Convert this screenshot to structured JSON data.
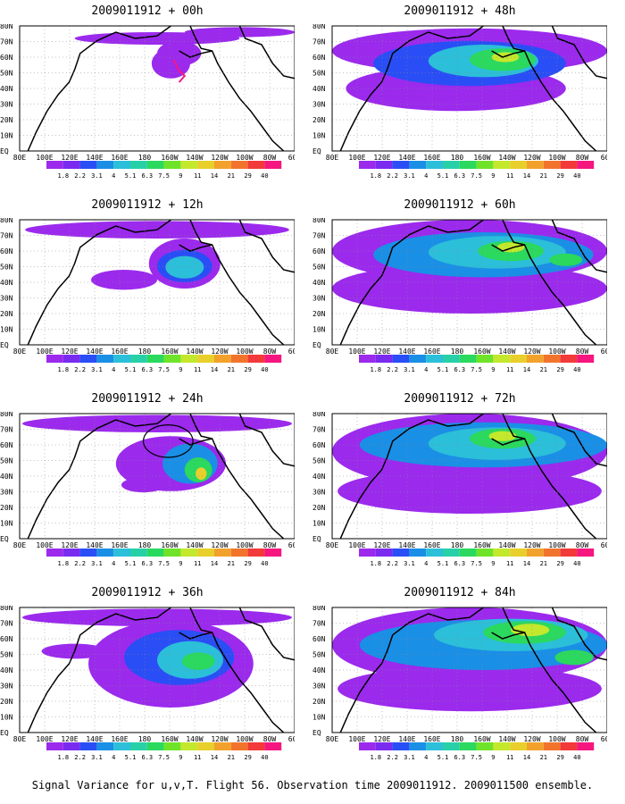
{
  "colors": [
    "#9b2aed",
    "#7a2bf0",
    "#2a4ef5",
    "#1a8fe6",
    "#2bbfd9",
    "#28d0a8",
    "#2ad95e",
    "#6fe32a",
    "#c3e82c",
    "#e8cf2c",
    "#f2a22c",
    "#f2742c",
    "#f23a3a",
    "#f5177f"
  ],
  "colorbar_labels": [
    "1.8",
    "2.2",
    "3.1",
    "4",
    "5.1",
    "6.3",
    "7.5",
    "9",
    "11",
    "14",
    "21",
    "29",
    "40"
  ],
  "lat_labels": [
    "80N",
    "70N",
    "60N",
    "50N",
    "40N",
    "30N",
    "20N",
    "10N",
    "EQ"
  ],
  "lon_labels": [
    "80E",
    "100E",
    "120E",
    "140E",
    "160E",
    "180",
    "160W",
    "140W",
    "120W",
    "100W",
    "80W",
    "60W"
  ],
  "footer": "Signal Variance for u,v,T. Flight 56. Observation time 2009011912. 2009011500 ensemble.",
  "chart_data": [
    {
      "type": "heatmap",
      "title": "2009011912 + 00h",
      "lead_hours": 0,
      "variable": "Signal Variance",
      "colorbar": [
        1.8,
        2.2,
        3.1,
        4,
        5.1,
        6.3,
        7.5,
        9,
        11,
        14,
        21,
        29,
        40
      ],
      "lat_range": [
        "EQ",
        "80N"
      ],
      "lon_range": [
        "80E",
        "60W"
      ]
    },
    {
      "type": "heatmap",
      "title": "2009011912 + 48h",
      "lead_hours": 48,
      "variable": "Signal Variance",
      "colorbar": [
        1.8,
        2.2,
        3.1,
        4,
        5.1,
        6.3,
        7.5,
        9,
        11,
        14,
        21,
        29,
        40
      ],
      "lat_range": [
        "EQ",
        "80N"
      ],
      "lon_range": [
        "80E",
        "60W"
      ]
    },
    {
      "type": "heatmap",
      "title": "2009011912 + 12h",
      "lead_hours": 12,
      "variable": "Signal Variance",
      "colorbar": [
        1.8,
        2.2,
        3.1,
        4,
        5.1,
        6.3,
        7.5,
        9,
        11,
        14,
        21,
        29,
        40
      ],
      "lat_range": [
        "EQ",
        "80N"
      ],
      "lon_range": [
        "80E",
        "60W"
      ]
    },
    {
      "type": "heatmap",
      "title": "2009011912 + 60h",
      "lead_hours": 60,
      "variable": "Signal Variance",
      "colorbar": [
        1.8,
        2.2,
        3.1,
        4,
        5.1,
        6.3,
        7.5,
        9,
        11,
        14,
        21,
        29,
        40
      ],
      "lat_range": [
        "EQ",
        "80N"
      ],
      "lon_range": [
        "80E",
        "60W"
      ]
    },
    {
      "type": "heatmap",
      "title": "2009011912 + 24h",
      "lead_hours": 24,
      "variable": "Signal Variance",
      "colorbar": [
        1.8,
        2.2,
        3.1,
        4,
        5.1,
        6.3,
        7.5,
        9,
        11,
        14,
        21,
        29,
        40
      ],
      "lat_range": [
        "EQ",
        "80N"
      ],
      "lon_range": [
        "80E",
        "60W"
      ]
    },
    {
      "type": "heatmap",
      "title": "2009011912 + 72h",
      "lead_hours": 72,
      "variable": "Signal Variance",
      "colorbar": [
        1.8,
        2.2,
        3.1,
        4,
        5.1,
        6.3,
        7.5,
        9,
        11,
        14,
        21,
        29,
        40
      ],
      "lat_range": [
        "EQ",
        "80N"
      ],
      "lon_range": [
        "80E",
        "60W"
      ]
    },
    {
      "type": "heatmap",
      "title": "2009011912 + 36h",
      "lead_hours": 36,
      "variable": "Signal Variance",
      "colorbar": [
        1.8,
        2.2,
        3.1,
        4,
        5.1,
        6.3,
        7.5,
        9,
        11,
        14,
        21,
        29,
        40
      ],
      "lat_range": [
        "EQ",
        "80N"
      ],
      "lon_range": [
        "80E",
        "60W"
      ]
    },
    {
      "type": "heatmap",
      "title": "2009011912 + 84h",
      "lead_hours": 84,
      "variable": "Signal Variance",
      "colorbar": [
        1.8,
        2.2,
        3.1,
        4,
        5.1,
        6.3,
        7.5,
        9,
        11,
        14,
        21,
        29,
        40
      ],
      "lat_range": [
        "EQ",
        "80N"
      ],
      "lon_range": [
        "80E",
        "60W"
      ]
    }
  ]
}
